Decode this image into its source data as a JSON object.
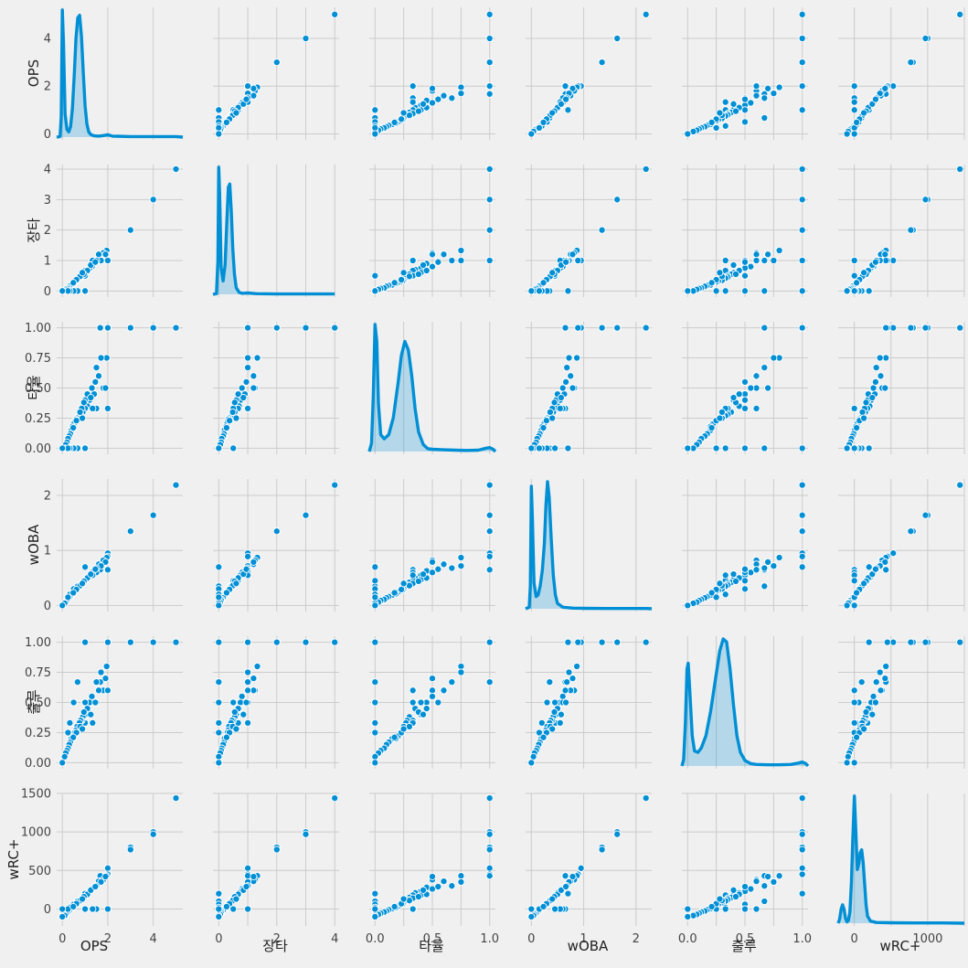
{
  "chart_data": {
    "type": "pairplot",
    "variables": [
      "OPS",
      "장타",
      "타율",
      "wOBA",
      "출루",
      "wRC+"
    ],
    "diagonal": "kde",
    "grid": true,
    "color": "#008fd5",
    "background": "#f0f0f0",
    "axes": {
      "OPS": {
        "range": [
          -0.25,
          5.3
        ],
        "ticks": [
          0,
          2,
          4
        ],
        "tick_labels": [
          "0",
          "2",
          "4"
        ]
      },
      "장타": {
        "range": [
          -0.2,
          4.15
        ],
        "ticks": [
          0,
          1,
          2,
          3,
          4
        ],
        "tick_labels": [
          "0",
          "1",
          "2",
          "3",
          "4"
        ]
      },
      "타율": {
        "range": [
          -0.05,
          1.05
        ],
        "ticks": [
          0.0,
          0.25,
          0.5,
          0.75,
          1.0
        ],
        "tick_labels": [
          "0.00",
          "0.25",
          "0.50",
          "0.75",
          "1.00"
        ]
      },
      "wOBA": {
        "range": [
          -0.11,
          2.3
        ],
        "ticks": [
          0,
          1,
          2
        ],
        "tick_labels": [
          "0",
          "1",
          "2"
        ]
      },
      "출루": {
        "range": [
          -0.05,
          1.05
        ],
        "ticks": [
          0.0,
          0.25,
          0.5,
          0.75,
          1.0
        ],
        "tick_labels": [
          "0.00",
          "0.25",
          "0.50",
          "0.75",
          "1.00"
        ]
      },
      "wRC+": {
        "range": [
          -220,
          1500
        ],
        "ticks": [
          0,
          500,
          1000,
          1500
        ],
        "tick_labels": [
          "0",
          "500",
          "1000",
          "1500"
        ]
      }
    },
    "bottom_tick_labels": {
      "OPS": [
        "0",
        "2",
        "4"
      ],
      "장타": [
        "0",
        "2",
        "4"
      ],
      "타율": [
        "0.0",
        "0.5",
        "1.0"
      ],
      "wOBA": [
        "0",
        "1",
        "2"
      ],
      "출루": [
        "0.0",
        "0.5",
        "1.0"
      ],
      "wRC+": [
        "0",
        "1000"
      ]
    },
    "points": [
      {
        "OPS": 5.0,
        "장타": 4.0,
        "타율": 1.0,
        "wOBA": 2.19,
        "출루": 1.0,
        "wRC+": 1440
      },
      {
        "OPS": 4.0,
        "장타": 3.0,
        "타율": 1.0,
        "wOBA": 1.64,
        "출루": 1.0,
        "wRC+": 1000
      },
      {
        "OPS": 4.0,
        "장타": 3.0,
        "타율": 1.0,
        "wOBA": 1.64,
        "출루": 1.0,
        "wRC+": 970
      },
      {
        "OPS": 3.0,
        "장타": 2.0,
        "타율": 1.0,
        "wOBA": 1.35,
        "출루": 1.0,
        "wRC+": 800
      },
      {
        "OPS": 3.0,
        "장타": 2.0,
        "타율": 1.0,
        "wOBA": 1.35,
        "출루": 1.0,
        "wRC+": 770
      },
      {
        "OPS": 2.0,
        "장타": 1.0,
        "타율": 1.0,
        "wOBA": 0.95,
        "출루": 1.0,
        "wRC+": 530
      },
      {
        "OPS": 2.0,
        "장타": 1.0,
        "타율": 1.0,
        "wOBA": 0.89,
        "출루": 1.0,
        "wRC+": 450
      },
      {
        "OPS": 1.67,
        "장타": 1.0,
        "타율": 1.0,
        "wOBA": 0.65,
        "출루": 0.67,
        "wRC+": 430
      },
      {
        "OPS": 1.95,
        "장타": 1.33,
        "타율": 0.75,
        "wOBA": 0.87,
        "출루": 0.8,
        "wRC+": 430
      },
      {
        "OPS": 1.8,
        "장타": 1.25,
        "타율": 0.5,
        "wOBA": 0.82,
        "출루": 0.6,
        "wRC+": 380
      },
      {
        "OPS": 1.6,
        "장타": 1.2,
        "타율": 0.6,
        "wOBA": 0.75,
        "출루": 0.6,
        "wRC+": 360
      },
      {
        "OPS": 1.9,
        "장타": 1.2,
        "타율": 0.5,
        "wOBA": 0.79,
        "출루": 0.7,
        "wRC+": 420
      },
      {
        "OPS": 1.7,
        "장타": 1.0,
        "타율": 0.75,
        "wOBA": 0.72,
        "출루": 0.75,
        "wRC+": 350
      },
      {
        "OPS": 1.5,
        "장타": 1.0,
        "타율": 0.67,
        "wOBA": 0.68,
        "출루": 0.67,
        "wRC+": 300
      },
      {
        "OPS": 1.4,
        "장타": 0.9,
        "타율": 0.45,
        "wOBA": 0.63,
        "출루": 0.5,
        "wRC+": 280
      },
      {
        "OPS": 1.3,
        "장타": 0.8,
        "타율": 0.5,
        "wOBA": 0.6,
        "출루": 0.55,
        "wRC+": 260
      },
      {
        "OPS": 1.2,
        "장타": 0.75,
        "타율": 0.4,
        "wOBA": 0.55,
        "출루": 0.5,
        "wRC+": 230
      },
      {
        "OPS": 1.1,
        "장타": 0.7,
        "타율": 0.35,
        "wOBA": 0.5,
        "출루": 0.45,
        "wRC+": 210
      },
      {
        "OPS": 1.0,
        "장타": 0.6,
        "타율": 0.4,
        "wOBA": 0.47,
        "출루": 0.4,
        "wRC+": 180
      },
      {
        "OPS": 1.0,
        "장타": 0.67,
        "타율": 0.33,
        "wOBA": 0.46,
        "출루": 0.33,
        "wRC+": 180
      },
      {
        "OPS": 0.9,
        "장타": 0.55,
        "타율": 0.3,
        "wOBA": 0.42,
        "출루": 0.38,
        "wRC+": 150
      },
      {
        "OPS": 0.85,
        "장타": 0.5,
        "타율": 0.33,
        "wOBA": 0.4,
        "출루": 0.35,
        "wRC+": 140
      },
      {
        "OPS": 0.8,
        "장타": 0.45,
        "타율": 0.28,
        "wOBA": 0.37,
        "출루": 0.35,
        "wRC+": 120
      },
      {
        "OPS": 0.75,
        "장타": 0.42,
        "타율": 0.27,
        "wOBA": 0.35,
        "출루": 0.33,
        "wRC+": 105
      },
      {
        "OPS": 0.7,
        "장타": 0.4,
        "타율": 0.26,
        "wOBA": 0.33,
        "출루": 0.3,
        "wRC+": 95
      },
      {
        "OPS": 0.65,
        "장타": 0.35,
        "타율": 0.25,
        "wOBA": 0.3,
        "출루": 0.3,
        "wRC+": 80
      },
      {
        "OPS": 0.6,
        "장타": 0.33,
        "타율": 0.24,
        "wOBA": 0.28,
        "출루": 0.27,
        "wRC+": 65
      },
      {
        "OPS": 0.55,
        "장타": 0.3,
        "타율": 0.22,
        "wOBA": 0.26,
        "출루": 0.25,
        "wRC+": 50
      },
      {
        "OPS": 0.5,
        "장타": 0.28,
        "타율": 0.2,
        "wOBA": 0.24,
        "출루": 0.22,
        "wRC+": 35
      },
      {
        "OPS": 0.45,
        "장타": 0.25,
        "타율": 0.18,
        "wOBA": 0.21,
        "출루": 0.2,
        "wRC+": 20
      },
      {
        "OPS": 0.4,
        "장타": 0.2,
        "타율": 0.15,
        "wOBA": 0.19,
        "출루": 0.2,
        "wRC+": 5
      },
      {
        "OPS": 0.35,
        "장타": 0.18,
        "타율": 0.12,
        "wOBA": 0.16,
        "출루": 0.17,
        "wRC+": -10
      },
      {
        "OPS": 0.3,
        "장타": 0.15,
        "타율": 0.1,
        "wOBA": 0.14,
        "출루": 0.15,
        "wRC+": -25
      },
      {
        "OPS": 0.25,
        "장타": 0.1,
        "타율": 0.08,
        "wOBA": 0.11,
        "출루": 0.12,
        "wRC+": -40
      },
      {
        "OPS": 0.2,
        "장타": 0.08,
        "타율": 0.05,
        "wOBA": 0.09,
        "출루": 0.1,
        "wRC+": -55
      },
      {
        "OPS": 0.15,
        "장타": 0.05,
        "타율": 0.03,
        "wOBA": 0.06,
        "출루": 0.08,
        "wRC+": -70
      },
      {
        "OPS": 0.1,
        "장타": 0.0,
        "타율": 0.0,
        "wOBA": 0.04,
        "출루": 0.05,
        "wRC+": -85
      },
      {
        "OPS": 0.0,
        "장타": 0.0,
        "타율": 0.0,
        "wOBA": 0.0,
        "출루": 0.0,
        "wRC+": -100
      },
      {
        "OPS": 1.0,
        "장타": 0.0,
        "타율": 0.0,
        "wOBA": 0.7,
        "출루": 1.0,
        "wRC+": 200
      },
      {
        "OPS": 0.67,
        "장타": 0.0,
        "타율": 0.0,
        "wOBA": 0.35,
        "출루": 0.67,
        "wRC+": 100
      },
      {
        "OPS": 0.5,
        "장타": 0.0,
        "타율": 0.0,
        "wOBA": 0.3,
        "출루": 0.5,
        "wRC+": 60
      },
      {
        "OPS": 0.33,
        "장타": 0.0,
        "타율": 0.0,
        "wOBA": 0.2,
        "출루": 0.33,
        "wRC+": 20
      },
      {
        "OPS": 0.25,
        "장타": 0.0,
        "타율": 0.0,
        "wOBA": 0.15,
        "출루": 0.25,
        "wRC+": 0
      },
      {
        "OPS": 2.0,
        "장타": 1.0,
        "타율": 0.33,
        "wOBA": 0.65,
        "출루": 0.6,
        "wRC+": 0
      },
      {
        "OPS": 1.5,
        "장타": 1.0,
        "타율": 0.33,
        "wOBA": 0.6,
        "출루": 0.5,
        "wRC+": 0
      },
      {
        "OPS": 1.33,
        "장타": 1.0,
        "타율": 0.33,
        "wOBA": 0.55,
        "출루": 0.33,
        "wRC+": 0
      },
      {
        "OPS": 1.0,
        "장타": 0.5,
        "타율": 0.0,
        "wOBA": 0.45,
        "출루": 0.5,
        "wRC+": 0
      },
      {
        "OPS": 0.0,
        "장타": 0.0,
        "타율": 0.0,
        "wOBA": 0.0,
        "출루": 0.0,
        "wRC+": 0
      },
      {
        "OPS": 1.1,
        "장타": 0.67,
        "타율": 0.45,
        "wOBA": 0.5,
        "출루": 0.45,
        "wRC+": 190
      },
      {
        "OPS": 0.95,
        "장타": 0.55,
        "타율": 0.38,
        "wOBA": 0.44,
        "출루": 0.42,
        "wRC+": 160
      },
      {
        "OPS": 0.78,
        "장타": 0.48,
        "타율": 0.3,
        "wOBA": 0.36,
        "출루": 0.3,
        "wRC+": 110
      },
      {
        "OPS": 0.62,
        "장타": 0.37,
        "타율": 0.23,
        "wOBA": 0.29,
        "출루": 0.25,
        "wRC+": 70
      },
      {
        "OPS": 0.48,
        "장타": 0.27,
        "타율": 0.17,
        "wOBA": 0.23,
        "출루": 0.21,
        "wRC+": 30
      },
      {
        "OPS": 1.25,
        "장타": 0.85,
        "타율": 0.42,
        "wOBA": 0.57,
        "출루": 0.4,
        "wRC+": 245
      },
      {
        "OPS": 1.45,
        "장타": 0.95,
        "타율": 0.55,
        "wOBA": 0.66,
        "출루": 0.5,
        "wRC+": 290
      },
      {
        "OPS": 0.88,
        "장타": 0.6,
        "타율": 0.25,
        "wOBA": 0.4,
        "출루": 0.28,
        "wRC+": 130
      }
    ],
    "kde": {
      "OPS": {
        "x": [
          -0.25,
          -0.1,
          -0.05,
          0.0,
          0.05,
          0.12,
          0.2,
          0.28,
          0.36,
          0.44,
          0.52,
          0.6,
          0.68,
          0.76,
          0.84,
          0.92,
          1.0,
          1.08,
          1.16,
          1.25,
          1.4,
          1.6,
          1.8,
          2.0,
          2.2,
          3.0,
          4.0,
          5.0,
          5.3
        ],
        "y": [
          0.0,
          0.02,
          0.8,
          4.9,
          3.6,
          0.9,
          0.3,
          0.2,
          0.4,
          1.1,
          2.3,
          3.8,
          4.6,
          4.7,
          3.9,
          2.5,
          1.2,
          0.5,
          0.2,
          0.1,
          0.05,
          0.04,
          0.06,
          0.09,
          0.04,
          0.02,
          0.02,
          0.02,
          0.0
        ]
      },
      "장타": {
        "x": [
          -0.2,
          -0.08,
          -0.03,
          0.0,
          0.03,
          0.08,
          0.15,
          0.22,
          0.28,
          0.33,
          0.38,
          0.43,
          0.48,
          0.54,
          0.6,
          0.7,
          0.8,
          1.0,
          1.3,
          2.0,
          3.0,
          4.0
        ],
        "y": [
          0.0,
          0.02,
          1.0,
          3.8,
          3.0,
          0.8,
          0.4,
          0.9,
          2.2,
          3.2,
          3.3,
          2.5,
          1.4,
          0.6,
          0.2,
          0.06,
          0.03,
          0.04,
          0.02,
          0.01,
          0.01,
          0.01
        ]
      },
      "타율": {
        "x": [
          -0.05,
          -0.03,
          -0.015,
          0.0,
          0.015,
          0.03,
          0.05,
          0.08,
          0.12,
          0.16,
          0.2,
          0.23,
          0.26,
          0.29,
          0.32,
          0.35,
          0.38,
          0.42,
          0.46,
          0.5,
          0.6,
          0.7,
          0.8,
          0.9,
          0.97,
          1.0,
          1.03,
          1.05
        ],
        "y": [
          0.0,
          0.3,
          2.0,
          4.5,
          3.9,
          1.7,
          0.6,
          0.45,
          0.6,
          1.2,
          2.4,
          3.4,
          3.9,
          3.6,
          2.7,
          1.5,
          0.7,
          0.25,
          0.1,
          0.08,
          0.06,
          0.05,
          0.04,
          0.05,
          0.12,
          0.14,
          0.08,
          0.0
        ]
      },
      "wOBA": {
        "x": [
          -0.11,
          -0.04,
          -0.02,
          0.0,
          0.02,
          0.05,
          0.09,
          0.13,
          0.17,
          0.21,
          0.25,
          0.28,
          0.31,
          0.34,
          0.38,
          0.42,
          0.46,
          0.5,
          0.6,
          0.8,
          1.0,
          1.4,
          1.8,
          2.2,
          2.3
        ],
        "y": [
          0.0,
          0.1,
          1.5,
          8.0,
          6.0,
          1.7,
          0.8,
          0.9,
          1.5,
          2.5,
          4.3,
          6.8,
          8.3,
          7.3,
          4.5,
          2.2,
          0.9,
          0.35,
          0.1,
          0.04,
          0.03,
          0.02,
          0.02,
          0.02,
          0.0
        ]
      },
      "출루": {
        "x": [
          -0.05,
          -0.035,
          -0.02,
          -0.005,
          0.005,
          0.02,
          0.04,
          0.06,
          0.09,
          0.12,
          0.16,
          0.2,
          0.24,
          0.28,
          0.31,
          0.34,
          0.37,
          0.4,
          0.43,
          0.46,
          0.5,
          0.55,
          0.6,
          0.7,
          0.8,
          0.9,
          0.97,
          1.0,
          1.03,
          1.05
        ],
        "y": [
          0.0,
          0.2,
          1.4,
          3.2,
          3.4,
          2.4,
          1.0,
          0.5,
          0.45,
          0.6,
          1.0,
          1.8,
          2.8,
          3.8,
          4.2,
          4.1,
          3.2,
          2.0,
          1.0,
          0.45,
          0.18,
          0.08,
          0.05,
          0.04,
          0.04,
          0.05,
          0.1,
          0.13,
          0.08,
          0.0
        ]
      },
      "wRC+": {
        "x": [
          -220,
          -200,
          -180,
          -160,
          -140,
          -120,
          -100,
          -80,
          -60,
          -40,
          -20,
          0,
          20,
          40,
          60,
          80,
          100,
          120,
          140,
          160,
          180,
          220,
          300,
          500,
          800,
          1000,
          1200,
          1500
        ],
        "y": [
          0.0,
          0.3,
          1.0,
          1.3,
          1.0,
          0.35,
          0.1,
          0.2,
          0.8,
          2.8,
          6.0,
          9.0,
          6.5,
          3.8,
          4.2,
          5.0,
          5.2,
          4.3,
          2.8,
          1.3,
          0.5,
          0.15,
          0.05,
          0.03,
          0.02,
          0.02,
          0.02,
          0.0
        ]
      }
    }
  }
}
